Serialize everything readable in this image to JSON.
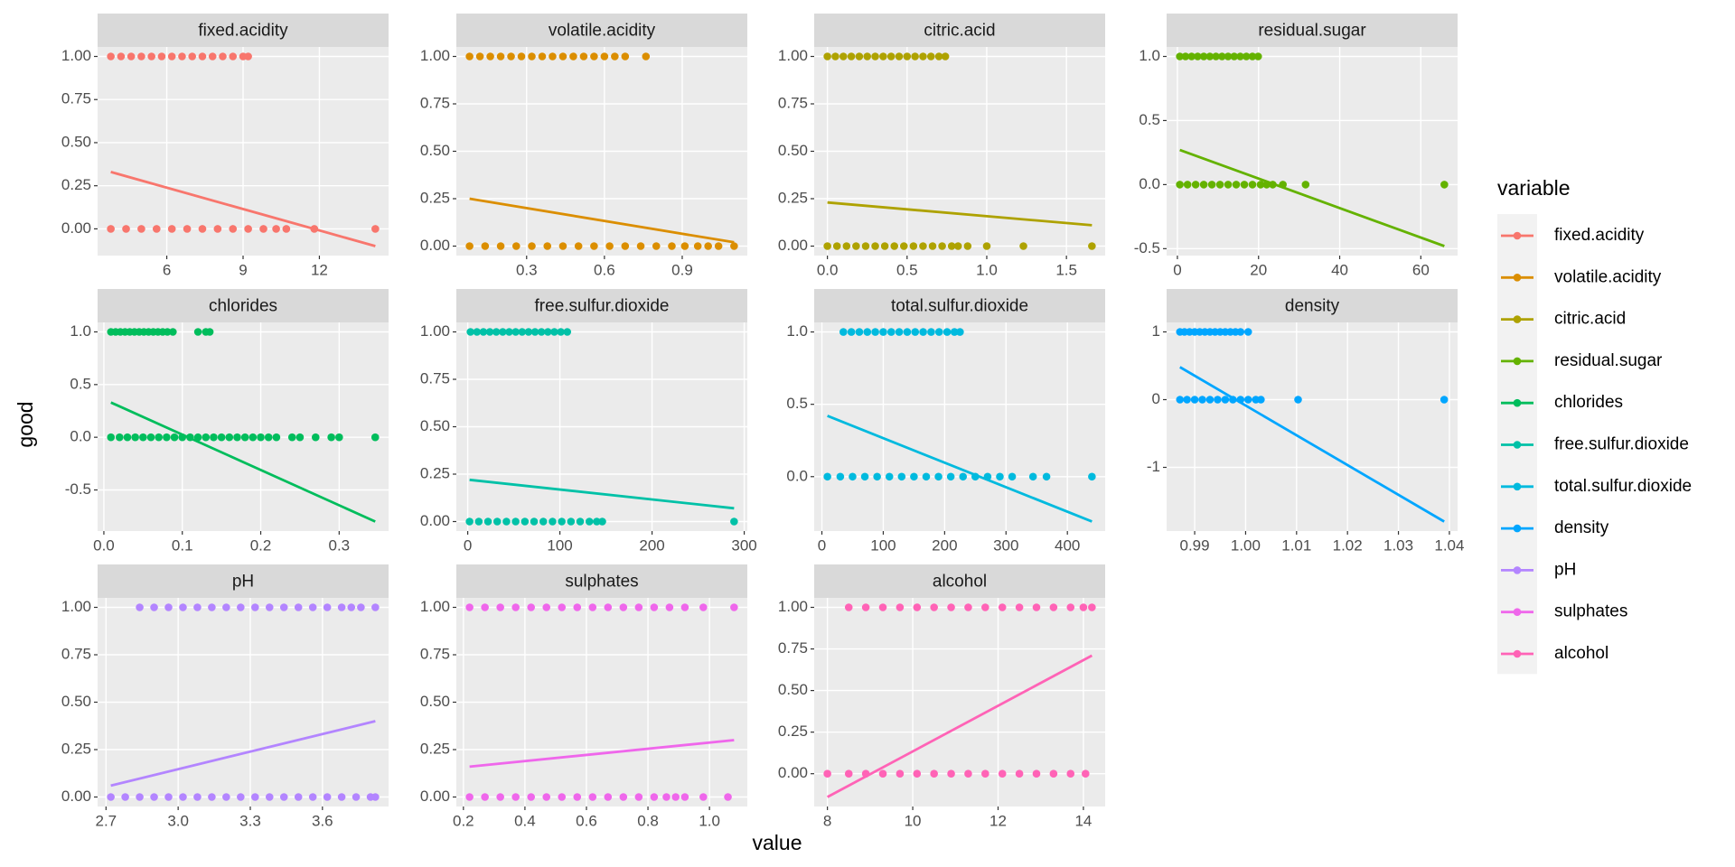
{
  "x_label": "value",
  "y_label": "good",
  "legend_title": "variable",
  "chart_data": [
    {
      "type": "scatter",
      "title": "fixed.acidity",
      "color": "#F8766D",
      "x": [
        3.8,
        4.2,
        4.6,
        5.0,
        5.4,
        5.8,
        6.2,
        6.6,
        7.0,
        7.4,
        7.8,
        8.2,
        8.6,
        9.0,
        9.2,
        3.8,
        4.4,
        5.0,
        5.6,
        6.2,
        6.8,
        7.4,
        8.0,
        8.6,
        9.2,
        9.8,
        10.3,
        10.7,
        11.8,
        14.2
      ],
      "values": [
        1,
        1,
        1,
        1,
        1,
        1,
        1,
        1,
        1,
        1,
        1,
        1,
        1,
        1,
        1,
        0,
        0,
        0,
        0,
        0,
        0,
        0,
        0,
        0,
        0,
        0,
        0,
        0,
        0,
        0
      ],
      "fit": {
        "x": [
          3.8,
          14.2
        ],
        "values": [
          0.33,
          -0.1
        ]
      },
      "xlim": [
        3.28,
        14.72
      ],
      "ylim": [
        -0.155,
        1.055
      ],
      "xticks": [
        6,
        9,
        12
      ],
      "yticks": [
        {
          "value": 0,
          "label": "0.00"
        },
        0.25,
        {
          "value": 0.5,
          "label": "0.50"
        },
        0.75,
        {
          "value": 1,
          "label": "1.00"
        }
      ]
    },
    {
      "type": "scatter",
      "title": "volatile.acidity",
      "color": "#DB8E00",
      "x": [
        0.08,
        0.12,
        0.16,
        0.2,
        0.24,
        0.28,
        0.32,
        0.36,
        0.4,
        0.44,
        0.48,
        0.52,
        0.56,
        0.6,
        0.64,
        0.68,
        0.76,
        0.08,
        0.14,
        0.2,
        0.26,
        0.32,
        0.38,
        0.44,
        0.5,
        0.56,
        0.62,
        0.68,
        0.74,
        0.8,
        0.86,
        0.91,
        0.96,
        1.0,
        1.04,
        1.1
      ],
      "values": [
        1,
        1,
        1,
        1,
        1,
        1,
        1,
        1,
        1,
        1,
        1,
        1,
        1,
        1,
        1,
        1,
        1,
        0,
        0,
        0,
        0,
        0,
        0,
        0,
        0,
        0,
        0,
        0,
        0,
        0,
        0,
        0,
        0,
        0,
        0,
        0
      ],
      "fit": {
        "x": [
          0.08,
          1.1
        ],
        "values": [
          0.25,
          0.02
        ]
      },
      "xlim": [
        0.029,
        1.151
      ],
      "ylim": [
        -0.05,
        1.05
      ],
      "xticks": [
        0.3,
        0.6,
        0.9
      ],
      "yticks": [
        {
          "value": 0,
          "label": "0.00"
        },
        0.25,
        {
          "value": 0.5,
          "label": "0.50"
        },
        0.75,
        {
          "value": 1,
          "label": "1.00"
        }
      ]
    },
    {
      "type": "scatter",
      "title": "citric.acid",
      "color": "#AEA200",
      "x": [
        0,
        0.05,
        0.1,
        0.15,
        0.2,
        0.25,
        0.3,
        0.35,
        0.4,
        0.45,
        0.5,
        0.55,
        0.6,
        0.65,
        0.7,
        0.74,
        0,
        0.06,
        0.12,
        0.18,
        0.24,
        0.3,
        0.36,
        0.42,
        0.48,
        0.54,
        0.6,
        0.66,
        0.72,
        0.78,
        0.82,
        0.88,
        1.0,
        1.23,
        1.66
      ],
      "values": [
        1,
        1,
        1,
        1,
        1,
        1,
        1,
        1,
        1,
        1,
        1,
        1,
        1,
        1,
        1,
        1,
        0,
        0,
        0,
        0,
        0,
        0,
        0,
        0,
        0,
        0,
        0,
        0,
        0,
        0,
        0,
        0,
        0,
        0,
        0
      ],
      "fit": {
        "x": [
          0,
          1.66
        ],
        "values": [
          0.23,
          0.11
        ]
      },
      "xlim": [
        -0.083,
        1.743
      ],
      "ylim": [
        -0.05,
        1.05
      ],
      "xticks": [
        {
          "value": 0,
          "label": "0.0"
        },
        0.5,
        {
          "value": 1,
          "label": "1.0"
        },
        1.5
      ],
      "yticks": [
        {
          "value": 0,
          "label": "0.00"
        },
        0.25,
        {
          "value": 0.5,
          "label": "0.50"
        },
        0.75,
        {
          "value": 1,
          "label": "1.00"
        }
      ]
    },
    {
      "type": "scatter",
      "title": "residual.sugar",
      "color": "#64B200",
      "x": [
        0.6,
        2,
        3.5,
        5,
        6.5,
        8,
        9.5,
        11,
        12.5,
        14,
        15.5,
        17,
        18.5,
        19.9,
        0.6,
        2.5,
        4.5,
        6.5,
        8.5,
        10.5,
        12.5,
        14.5,
        16.5,
        18.5,
        20.5,
        22,
        23.5,
        26,
        31.6,
        65.8
      ],
      "values": [
        1,
        1,
        1,
        1,
        1,
        1,
        1,
        1,
        1,
        1,
        1,
        1,
        1,
        1,
        0,
        0,
        0,
        0,
        0,
        0,
        0,
        0,
        0,
        0,
        0,
        0,
        0,
        0,
        0,
        0
      ],
      "fit": {
        "x": [
          0.6,
          65.8
        ],
        "values": [
          0.27,
          -0.48
        ]
      },
      "xlim": [
        -2.66,
        69.06
      ],
      "ylim": [
        -0.554,
        1.074
      ],
      "xticks": [
        0,
        20,
        40,
        60
      ],
      "yticks": [
        -0.5,
        {
          "value": 0,
          "label": "0.0"
        },
        0.5,
        {
          "value": 1,
          "label": "1.0"
        }
      ]
    },
    {
      "type": "scatter",
      "title": "chlorides",
      "color": "#00BD5C",
      "x": [
        0.009,
        0.015,
        0.021,
        0.027,
        0.033,
        0.039,
        0.045,
        0.051,
        0.057,
        0.063,
        0.069,
        0.075,
        0.081,
        0.088,
        0.12,
        0.13,
        0.135,
        0.009,
        0.02,
        0.03,
        0.04,
        0.05,
        0.06,
        0.07,
        0.08,
        0.09,
        0.1,
        0.11,
        0.12,
        0.13,
        0.14,
        0.15,
        0.16,
        0.17,
        0.18,
        0.19,
        0.2,
        0.21,
        0.22,
        0.24,
        0.25,
        0.27,
        0.29,
        0.3,
        0.346
      ],
      "values": [
        1,
        1,
        1,
        1,
        1,
        1,
        1,
        1,
        1,
        1,
        1,
        1,
        1,
        1,
        1,
        1,
        1,
        0,
        0,
        0,
        0,
        0,
        0,
        0,
        0,
        0,
        0,
        0,
        0,
        0,
        0,
        0,
        0,
        0,
        0,
        0,
        0,
        0,
        0,
        0,
        0,
        0,
        0,
        0,
        0
      ],
      "fit": {
        "x": [
          0.009,
          0.346
        ],
        "values": [
          0.33,
          -0.8
        ]
      },
      "xlim": [
        -0.008,
        0.363
      ],
      "ylim": [
        -0.89,
        1.09
      ],
      "xticks": [
        {
          "value": 0,
          "label": "0.0"
        },
        0.1,
        0.2,
        0.3
      ],
      "yticks": [
        -0.5,
        {
          "value": 0,
          "label": "0.0"
        },
        0.5,
        {
          "value": 1,
          "label": "1.0"
        }
      ]
    },
    {
      "type": "scatter",
      "title": "free.sulfur.dioxide",
      "color": "#00C1A7",
      "x": [
        3,
        10,
        17,
        24,
        31,
        38,
        45,
        52,
        59,
        66,
        73,
        80,
        87,
        94,
        101,
        108,
        2,
        12,
        22,
        32,
        42,
        52,
        62,
        72,
        82,
        92,
        102,
        112,
        122,
        132,
        140,
        146,
        289
      ],
      "values": [
        1,
        1,
        1,
        1,
        1,
        1,
        1,
        1,
        1,
        1,
        1,
        1,
        1,
        1,
        1,
        1,
        0,
        0,
        0,
        0,
        0,
        0,
        0,
        0,
        0,
        0,
        0,
        0,
        0,
        0,
        0,
        0,
        0
      ],
      "fit": {
        "x": [
          2,
          289
        ],
        "values": [
          0.22,
          0.07
        ]
      },
      "xlim": [
        -12.35,
        303.35
      ],
      "ylim": [
        -0.05,
        1.05
      ],
      "xticks": [
        0,
        100,
        200,
        300
      ],
      "yticks": [
        {
          "value": 0,
          "label": "0.00"
        },
        0.25,
        {
          "value": 0.5,
          "label": "0.50"
        },
        0.75,
        {
          "value": 1,
          "label": "1.00"
        }
      ]
    },
    {
      "type": "scatter",
      "title": "total.sulfur.dioxide",
      "color": "#00BADE",
      "x": [
        35,
        48,
        61,
        74,
        87,
        100,
        113,
        126,
        139,
        152,
        165,
        178,
        191,
        204,
        216,
        225,
        9,
        30,
        50,
        70,
        90,
        110,
        130,
        150,
        170,
        190,
        210,
        230,
        250,
        270,
        290,
        310,
        344,
        366,
        440
      ],
      "values": [
        1,
        1,
        1,
        1,
        1,
        1,
        1,
        1,
        1,
        1,
        1,
        1,
        1,
        1,
        1,
        1,
        0,
        0,
        0,
        0,
        0,
        0,
        0,
        0,
        0,
        0,
        0,
        0,
        0,
        0,
        0,
        0,
        0,
        0,
        0
      ],
      "fit": {
        "x": [
          9,
          440
        ],
        "values": [
          0.42,
          -0.31
        ]
      },
      "xlim": [
        -12.55,
        461.55
      ],
      "ylim": [
        -0.376,
        1.066
      ],
      "xticks": [
        0,
        100,
        200,
        300,
        400
      ],
      "yticks": [
        {
          "value": 0,
          "label": "0.0"
        },
        0.5,
        {
          "value": 1,
          "label": "1.0"
        }
      ]
    },
    {
      "type": "scatter",
      "title": "density",
      "color": "#00A6FF",
      "x": [
        0.98711,
        0.988,
        0.989,
        0.99,
        0.991,
        0.992,
        0.993,
        0.994,
        0.995,
        0.996,
        0.997,
        0.998,
        0.999,
        1.0005,
        0.98711,
        0.9885,
        0.99,
        0.9915,
        0.993,
        0.9945,
        0.996,
        0.9975,
        0.999,
        1.0005,
        1.002,
        1.003,
        1.0103,
        1.03898
      ],
      "values": [
        1,
        1,
        1,
        1,
        1,
        1,
        1,
        1,
        1,
        1,
        1,
        1,
        1,
        1,
        0,
        0,
        0,
        0,
        0,
        0,
        0,
        0,
        0,
        0,
        0,
        0,
        0,
        0
      ],
      "fit": {
        "x": [
          0.98711,
          1.03898
        ],
        "values": [
          0.48,
          -1.8
        ]
      },
      "xlim": [
        0.98449,
        1.04161
      ],
      "ylim": [
        -1.94,
        1.14
      ],
      "xticks": [
        0.99,
        {
          "value": 1,
          "label": "1.00"
        },
        1.01,
        1.02,
        1.03,
        1.04
      ],
      "yticks": [
        -1,
        0,
        1
      ]
    },
    {
      "type": "scatter",
      "title": "pH",
      "color": "#B385FF",
      "x": [
        2.84,
        2.9,
        2.96,
        3.02,
        3.08,
        3.14,
        3.2,
        3.26,
        3.32,
        3.38,
        3.44,
        3.5,
        3.56,
        3.62,
        3.68,
        3.72,
        3.76,
        3.82,
        2.72,
        2.78,
        2.84,
        2.9,
        2.96,
        3.02,
        3.08,
        3.14,
        3.2,
        3.26,
        3.32,
        3.38,
        3.44,
        3.5,
        3.56,
        3.62,
        3.68,
        3.74,
        3.8,
        3.82
      ],
      "values": [
        1,
        1,
        1,
        1,
        1,
        1,
        1,
        1,
        1,
        1,
        1,
        1,
        1,
        1,
        1,
        1,
        1,
        1,
        0,
        0,
        0,
        0,
        0,
        0,
        0,
        0,
        0,
        0,
        0,
        0,
        0,
        0,
        0,
        0,
        0,
        0,
        0,
        0
      ],
      "fit": {
        "x": [
          2.72,
          3.82
        ],
        "values": [
          0.06,
          0.4
        ]
      },
      "xlim": [
        2.665,
        3.875
      ],
      "ylim": [
        -0.05,
        1.05
      ],
      "xticks": [
        2.7,
        {
          "value": 3,
          "label": "3.0"
        },
        3.3,
        3.6
      ],
      "yticks": [
        {
          "value": 0,
          "label": "0.00"
        },
        0.25,
        {
          "value": 0.5,
          "label": "0.50"
        },
        0.75,
        {
          "value": 1,
          "label": "1.00"
        }
      ]
    },
    {
      "type": "scatter",
      "title": "sulphates",
      "color": "#EF67EB",
      "x": [
        0.22,
        0.27,
        0.32,
        0.37,
        0.42,
        0.47,
        0.52,
        0.57,
        0.62,
        0.67,
        0.72,
        0.77,
        0.82,
        0.87,
        0.92,
        0.98,
        1.08,
        0.22,
        0.27,
        0.32,
        0.37,
        0.42,
        0.47,
        0.52,
        0.57,
        0.62,
        0.67,
        0.72,
        0.77,
        0.82,
        0.86,
        0.89,
        0.92,
        0.98,
        1.06
      ],
      "values": [
        1,
        1,
        1,
        1,
        1,
        1,
        1,
        1,
        1,
        1,
        1,
        1,
        1,
        1,
        1,
        1,
        1,
        0,
        0,
        0,
        0,
        0,
        0,
        0,
        0,
        0,
        0,
        0,
        0,
        0,
        0,
        0,
        0,
        0,
        0
      ],
      "fit": {
        "x": [
          0.22,
          1.08
        ],
        "values": [
          0.16,
          0.3
        ]
      },
      "xlim": [
        0.177,
        1.123
      ],
      "ylim": [
        -0.05,
        1.05
      ],
      "xticks": [
        0.2,
        0.4,
        0.6,
        0.8,
        {
          "value": 1,
          "label": "1.0"
        }
      ],
      "yticks": [
        {
          "value": 0,
          "label": "0.00"
        },
        0.25,
        {
          "value": 0.5,
          "label": "0.50"
        },
        0.75,
        {
          "value": 1,
          "label": "1.00"
        }
      ]
    },
    {
      "type": "scatter",
      "title": "alcohol",
      "color": "#FF63B6",
      "x": [
        8.5,
        8.9,
        9.3,
        9.7,
        10.1,
        10.5,
        10.9,
        11.3,
        11.7,
        12.1,
        12.5,
        12.9,
        13.3,
        13.7,
        14,
        14.2,
        8,
        8.5,
        8.9,
        9.3,
        9.7,
        10.1,
        10.5,
        10.9,
        11.3,
        11.7,
        12.1,
        12.5,
        12.9,
        13.3,
        13.7,
        14.05
      ],
      "values": [
        1,
        1,
        1,
        1,
        1,
        1,
        1,
        1,
        1,
        1,
        1,
        1,
        1,
        1,
        1,
        1,
        0,
        0,
        0,
        0,
        0,
        0,
        0,
        0,
        0,
        0,
        0,
        0,
        0,
        0,
        0,
        0
      ],
      "fit": {
        "x": [
          8,
          14.2
        ],
        "values": [
          -0.14,
          0.71
        ]
      },
      "xlim": [
        7.69,
        14.51
      ],
      "ylim": [
        -0.197,
        1.057
      ],
      "xticks": [
        8,
        10,
        12,
        14
      ],
      "yticks": [
        {
          "value": 0,
          "label": "0.00"
        },
        0.25,
        {
          "value": 0.5,
          "label": "0.50"
        },
        0.75,
        {
          "value": 1,
          "label": "1.00"
        }
      ]
    }
  ]
}
